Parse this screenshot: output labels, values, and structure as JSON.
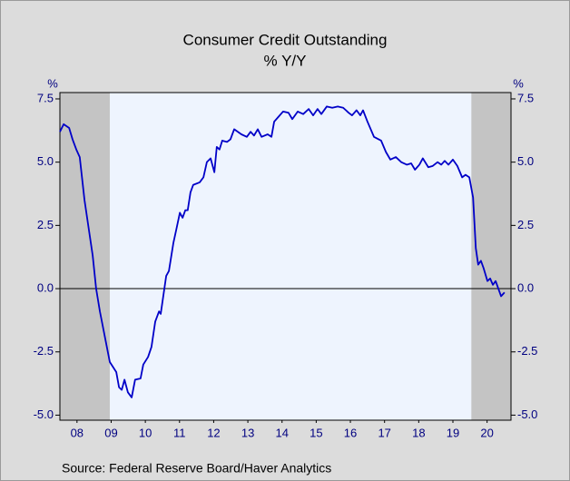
{
  "chart_data": {
    "type": "line",
    "title": "Consumer Credit Outstanding",
    "subtitle": "% Y/Y",
    "y_unit_left": "%",
    "y_unit_right": "%",
    "source": "Source:  Federal Reserve Board/Haver Analytics",
    "xlim": [
      2008,
      2021.2
    ],
    "xticks": [
      {
        "value": 2008.5,
        "label": "08"
      },
      {
        "value": 2009.5,
        "label": "09"
      },
      {
        "value": 2010.5,
        "label": "10"
      },
      {
        "value": 2011.5,
        "label": "11"
      },
      {
        "value": 2012.5,
        "label": "12"
      },
      {
        "value": 2013.5,
        "label": "13"
      },
      {
        "value": 2014.5,
        "label": "14"
      },
      {
        "value": 2015.5,
        "label": "15"
      },
      {
        "value": 2016.5,
        "label": "16"
      },
      {
        "value": 2017.5,
        "label": "17"
      },
      {
        "value": 2018.5,
        "label": "18"
      },
      {
        "value": 2019.5,
        "label": "19"
      },
      {
        "value": 2020.5,
        "label": "20"
      }
    ],
    "ylim": [
      -5.2,
      7.75
    ],
    "yticks": [
      {
        "value": -5,
        "label": "-5.0"
      },
      -2.5,
      {
        "value": 0,
        "label": "0.0"
      },
      2.5,
      {
        "value": 5,
        "label": "5.0"
      },
      7.5
    ],
    "y2lim": [
      -5.2,
      7.75
    ],
    "y2ticks": [
      {
        "value": -5,
        "label": "-5.0"
      },
      -2.5,
      {
        "value": 0,
        "label": "0.0"
      },
      2.5,
      {
        "value": 5,
        "label": "5.0"
      },
      7.5
    ],
    "recessions": [
      [
        2008,
        2009.46
      ],
      [
        2020.04,
        2021.2
      ]
    ],
    "recession_color": "#c4c4c4",
    "plot_background": "#eef4fe",
    "series": [
      {
        "name": "Consumer Credit Outstanding",
        "color": "#0000c8",
        "x": [
          2008.0,
          2008.11,
          2008.27,
          2008.37,
          2008.48,
          2008.58,
          2008.72,
          2008.96,
          2009.06,
          2009.17,
          2009.46,
          2009.65,
          2009.73,
          2009.81,
          2009.89,
          2009.99,
          2010.1,
          2010.2,
          2010.36,
          2010.44,
          2010.58,
          2010.68,
          2010.79,
          2010.9,
          2010.95,
          2011.11,
          2011.19,
          2011.32,
          2011.4,
          2011.51,
          2011.59,
          2011.67,
          2011.74,
          2011.82,
          2011.9,
          2012.09,
          2012.2,
          2012.3,
          2012.41,
          2012.52,
          2012.59,
          2012.67,
          2012.75,
          2012.89,
          2012.99,
          2013.1,
          2013.31,
          2013.47,
          2013.58,
          2013.68,
          2013.79,
          2013.9,
          2014.08,
          2014.19,
          2014.27,
          2014.4,
          2014.53,
          2014.69,
          2014.8,
          2014.96,
          2015.12,
          2015.28,
          2015.41,
          2015.54,
          2015.65,
          2015.81,
          2015.97,
          2016.13,
          2016.29,
          2016.45,
          2016.55,
          2016.68,
          2016.79,
          2016.87,
          2017.0,
          2017.19,
          2017.4,
          2017.54,
          2017.67,
          2017.83,
          2017.99,
          2018.15,
          2018.28,
          2018.39,
          2018.52,
          2018.62,
          2018.78,
          2018.91,
          2019.05,
          2019.16,
          2019.26,
          2019.37,
          2019.5,
          2019.63,
          2019.77,
          2019.87,
          2019.98,
          2020.09,
          2020.17,
          2020.24,
          2020.32,
          2020.4,
          2020.51,
          2020.59,
          2020.67,
          2020.75,
          2020.83,
          2020.91,
          2021.01
        ],
        "values": [
          6.2,
          6.5,
          6.35,
          5.9,
          5.5,
          5.2,
          3.5,
          1.3,
          0.0,
          -0.9,
          -2.9,
          -3.3,
          -3.9,
          -4.0,
          -3.6,
          -4.1,
          -4.3,
          -3.6,
          -3.55,
          -3.0,
          -2.7,
          -2.3,
          -1.3,
          -0.9,
          -1.0,
          0.5,
          0.7,
          1.8,
          2.3,
          3.0,
          2.8,
          3.1,
          3.1,
          3.8,
          4.1,
          4.2,
          4.4,
          5.0,
          5.15,
          4.6,
          5.6,
          5.5,
          5.85,
          5.8,
          5.9,
          6.3,
          6.1,
          6.0,
          6.2,
          6.05,
          6.3,
          6.0,
          6.1,
          6.0,
          6.6,
          6.8,
          7.0,
          6.95,
          6.7,
          7.0,
          6.9,
          7.1,
          6.85,
          7.1,
          6.9,
          7.2,
          7.15,
          7.2,
          7.15,
          6.95,
          6.85,
          7.05,
          6.85,
          7.05,
          6.6,
          6.0,
          5.85,
          5.4,
          5.1,
          5.2,
          5.0,
          4.9,
          4.95,
          4.7,
          4.9,
          5.15,
          4.8,
          4.85,
          5.0,
          4.9,
          5.05,
          4.9,
          5.1,
          4.85,
          4.4,
          4.5,
          4.4,
          3.6,
          1.6,
          0.95,
          1.1,
          0.8,
          0.3,
          0.4,
          0.15,
          0.3,
          0.0,
          -0.3,
          -0.15
        ]
      }
    ]
  }
}
